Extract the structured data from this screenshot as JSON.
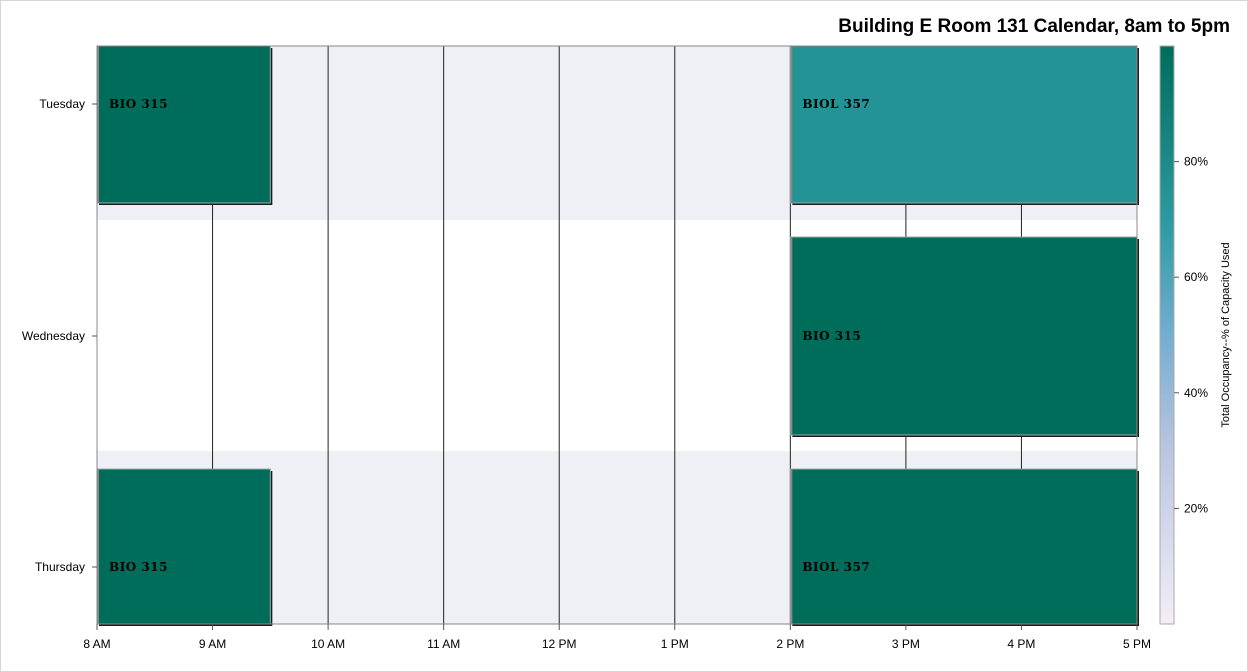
{
  "chart_data": {
    "type": "bar",
    "subtype": "calendar-gantt",
    "title": "Building E Room 131 Calendar, 8am to 5pm",
    "x_axis": {
      "min_hour": 8,
      "max_hour": 17,
      "ticks": [
        {
          "hour": 8,
          "label": "8 AM"
        },
        {
          "hour": 9,
          "label": "9 AM"
        },
        {
          "hour": 10,
          "label": "10 AM"
        },
        {
          "hour": 11,
          "label": "11 AM"
        },
        {
          "hour": 12,
          "label": "12 PM"
        },
        {
          "hour": 13,
          "label": "1 PM"
        },
        {
          "hour": 14,
          "label": "2 PM"
        },
        {
          "hour": 15,
          "label": "3 PM"
        },
        {
          "hour": 16,
          "label": "4 PM"
        },
        {
          "hour": 17,
          "label": "5 PM"
        }
      ]
    },
    "y_axis": {
      "categories": [
        "Tuesday",
        "Wednesday",
        "Thursday"
      ]
    },
    "bands": [
      {
        "day": "Tuesday",
        "shaded": true
      },
      {
        "day": "Wednesday",
        "shaded": false
      },
      {
        "day": "Thursday",
        "shaded": true
      }
    ],
    "events": [
      {
        "day": "Tuesday",
        "label": "BIO 315",
        "start": 8.0,
        "end": 9.5,
        "occupancy_pct": 100
      },
      {
        "day": "Tuesday",
        "label": "BIOL 357",
        "start": 14.0,
        "end": 17.0,
        "occupancy_pct": 75
      },
      {
        "day": "Wednesday",
        "label": "BIO 315",
        "start": 14.0,
        "end": 17.0,
        "occupancy_pct": 100
      },
      {
        "day": "Thursday",
        "label": "BIO 315",
        "start": 8.0,
        "end": 9.5,
        "occupancy_pct": 100
      },
      {
        "day": "Thursday",
        "label": "BIOL 357",
        "start": 14.0,
        "end": 17.0,
        "occupancy_pct": 100
      }
    ],
    "colorbar": {
      "title": "Total Occupancy--% of Capacity Used",
      "min": 0,
      "max": 100,
      "ticks": [
        {
          "value": 20,
          "label": "20%"
        },
        {
          "value": 40,
          "label": "40%"
        },
        {
          "value": 60,
          "label": "60%"
        },
        {
          "value": 80,
          "label": "80%"
        }
      ],
      "gradient": [
        {
          "stop": 0,
          "color": "#f3eef7"
        },
        {
          "stop": 0.3,
          "color": "#bac5e0"
        },
        {
          "stop": 0.5,
          "color": "#74add1"
        },
        {
          "stop": 0.7,
          "color": "#2a9aa0"
        },
        {
          "stop": 1,
          "color": "#006d5b"
        }
      ]
    }
  },
  "colors": {
    "band_shade": "#eef0f5",
    "axis": "#888888",
    "grid": "#222222"
  }
}
